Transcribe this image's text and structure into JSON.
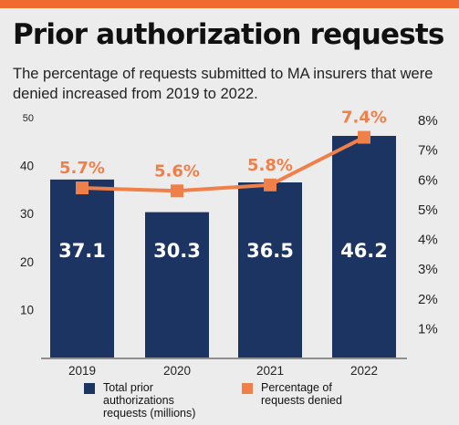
{
  "title": "Prior authorization requests",
  "subtitle": "The percentage of requests submitted to MA insurers that were denied increased from 2019 to 2022.",
  "colors": {
    "accent": "#f26b2e",
    "bar": "#1b3461",
    "line": "#f0804a",
    "bar_label": "#ffffff",
    "background": "#ececec"
  },
  "legend": [
    {
      "label": "Total prior authorizations requests (millions)",
      "swatch": "square-navy"
    },
    {
      "label": "Percentage of requests denied",
      "swatch": "square-orange"
    }
  ],
  "chart_data": {
    "type": "bar+line",
    "categories": [
      "2019",
      "2020",
      "2021",
      "2022"
    ],
    "bar_series": {
      "name": "Total prior authorizations requests (millions)",
      "values": [
        37.1,
        30.3,
        36.5,
        46.2
      ],
      "labels": [
        "37.1",
        "30.3",
        "36.5",
        "46.2"
      ],
      "axis": "left",
      "ylim": [
        0,
        50
      ],
      "ticks": [
        10,
        20,
        30,
        40,
        50
      ],
      "tick_labels": [
        "10",
        "20",
        "30",
        "40",
        "50"
      ]
    },
    "line_series": {
      "name": "Percentage of requests denied",
      "values": [
        5.7,
        5.6,
        5.8,
        7.4
      ],
      "labels": [
        "5.7%",
        "5.6%",
        "5.8%",
        "7.4%"
      ],
      "axis": "right",
      "ylim": [
        0,
        8
      ],
      "ticks": [
        1,
        2,
        3,
        4,
        5,
        6,
        7,
        8
      ],
      "tick_labels": [
        "1%",
        "2%",
        "3%",
        "4%",
        "5%",
        "6%",
        "7%",
        "8%"
      ]
    },
    "grid": false,
    "legend_position": "bottom"
  }
}
